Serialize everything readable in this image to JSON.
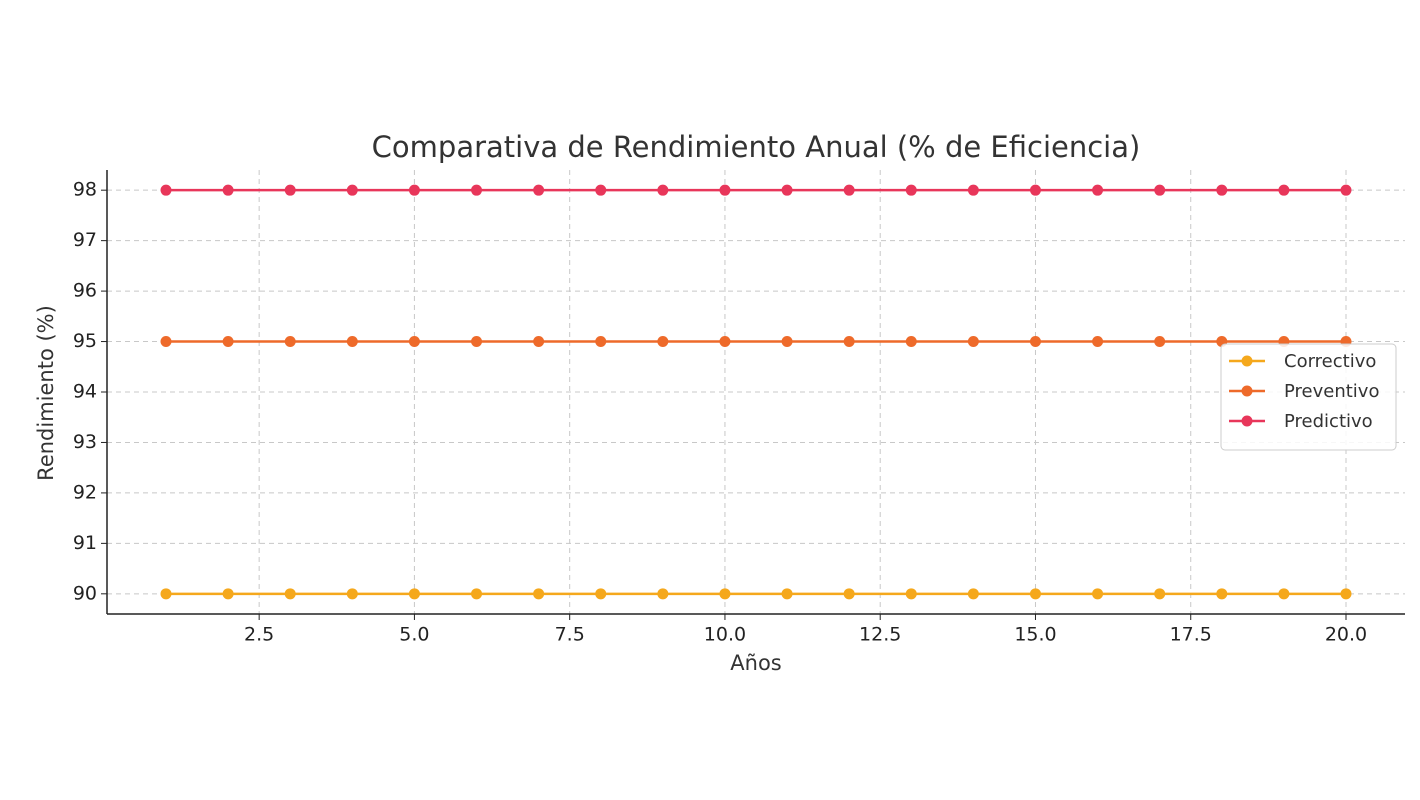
{
  "chart_data": {
    "type": "line",
    "title": "Comparativa de Rendimiento Anual (% de Eficiencia)",
    "xlabel": "Años",
    "ylabel": "Rendimiento (%)",
    "x": [
      1,
      2,
      3,
      4,
      5,
      6,
      7,
      8,
      9,
      10,
      11,
      12,
      13,
      14,
      15,
      16,
      17,
      18,
      19,
      20
    ],
    "series": [
      {
        "name": "Correctivo",
        "color": "#f5a81c",
        "values": [
          90,
          90,
          90,
          90,
          90,
          90,
          90,
          90,
          90,
          90,
          90,
          90,
          90,
          90,
          90,
          90,
          90,
          90,
          90,
          90
        ]
      },
      {
        "name": "Preventivo",
        "color": "#ee6a2a",
        "values": [
          95,
          95,
          95,
          95,
          95,
          95,
          95,
          95,
          95,
          95,
          95,
          95,
          95,
          95,
          95,
          95,
          95,
          95,
          95,
          95
        ]
      },
      {
        "name": "Predictivo",
        "color": "#e8365a",
        "values": [
          98,
          98,
          98,
          98,
          98,
          98,
          98,
          98,
          98,
          98,
          98,
          98,
          98,
          98,
          98,
          98,
          98,
          98,
          98,
          98
        ]
      }
    ],
    "xlim": [
      0.05,
      20.95
    ],
    "xticks": [
      2.5,
      {
        "value": 5,
        "label": "5.0"
      },
      7.5,
      {
        "value": 10,
        "label": "10.0"
      },
      12.5,
      {
        "value": 15,
        "label": "15.0"
      },
      17.5,
      {
        "value": 20,
        "label": "20.0"
      }
    ],
    "ylim": [
      89.6,
      98.4
    ],
    "yticks": [
      90,
      91,
      92,
      93,
      94,
      95,
      96,
      97,
      98
    ],
    "grid": true,
    "legend": "right"
  }
}
